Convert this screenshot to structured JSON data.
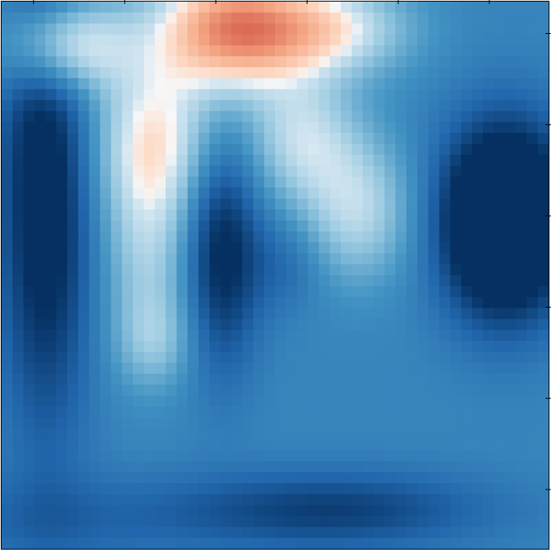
{
  "chart_data": {
    "type": "heatmap",
    "title": "",
    "xlabel": "",
    "ylabel": "",
    "colormap": "RdBu_r",
    "colorbar": false,
    "grid": false,
    "grid_rows": 50,
    "grid_cols": 50,
    "x_ticks_count": 6,
    "y_ticks_count": 6,
    "value_range": [
      -1,
      1
    ],
    "bumps": [
      {
        "cx": 0.42,
        "cy": 0.05,
        "sx": 0.1,
        "sy": 0.08,
        "v": 1.0
      },
      {
        "cx": 0.12,
        "cy": 0.08,
        "sx": 0.08,
        "sy": 0.06,
        "v": 0.65
      },
      {
        "cx": 0.6,
        "cy": 0.05,
        "sx": 0.1,
        "sy": 0.06,
        "v": 0.55
      },
      {
        "cx": 0.28,
        "cy": 0.25,
        "sx": 0.08,
        "sy": 0.1,
        "v": 0.55
      },
      {
        "cx": 0.27,
        "cy": 0.45,
        "sx": 0.06,
        "sy": 0.13,
        "v": 0.38
      },
      {
        "cx": 0.28,
        "cy": 0.62,
        "sx": 0.05,
        "sy": 0.06,
        "v": 0.25
      },
      {
        "cx": 0.55,
        "cy": 0.25,
        "sx": 0.07,
        "sy": 0.08,
        "v": 0.45
      },
      {
        "cx": 0.65,
        "cy": 0.38,
        "sx": 0.07,
        "sy": 0.09,
        "v": 0.45
      },
      {
        "cx": 0.52,
        "cy": 0.48,
        "sx": 0.05,
        "sy": 0.06,
        "v": -0.15
      },
      {
        "cx": 0.92,
        "cy": 0.4,
        "sx": 0.08,
        "sy": 0.12,
        "v": -1.0
      },
      {
        "cx": 0.08,
        "cy": 0.35,
        "sx": 0.06,
        "sy": 0.3,
        "v": -0.55
      },
      {
        "cx": 0.4,
        "cy": 0.45,
        "sx": 0.05,
        "sy": 0.15,
        "v": -0.5
      },
      {
        "cx": 0.6,
        "cy": 0.93,
        "sx": 0.2,
        "sy": 0.05,
        "v": -0.35
      },
      {
        "cx": 0.1,
        "cy": 0.95,
        "sx": 0.2,
        "sy": 0.06,
        "v": -0.15
      }
    ],
    "baseline": -0.58
  }
}
